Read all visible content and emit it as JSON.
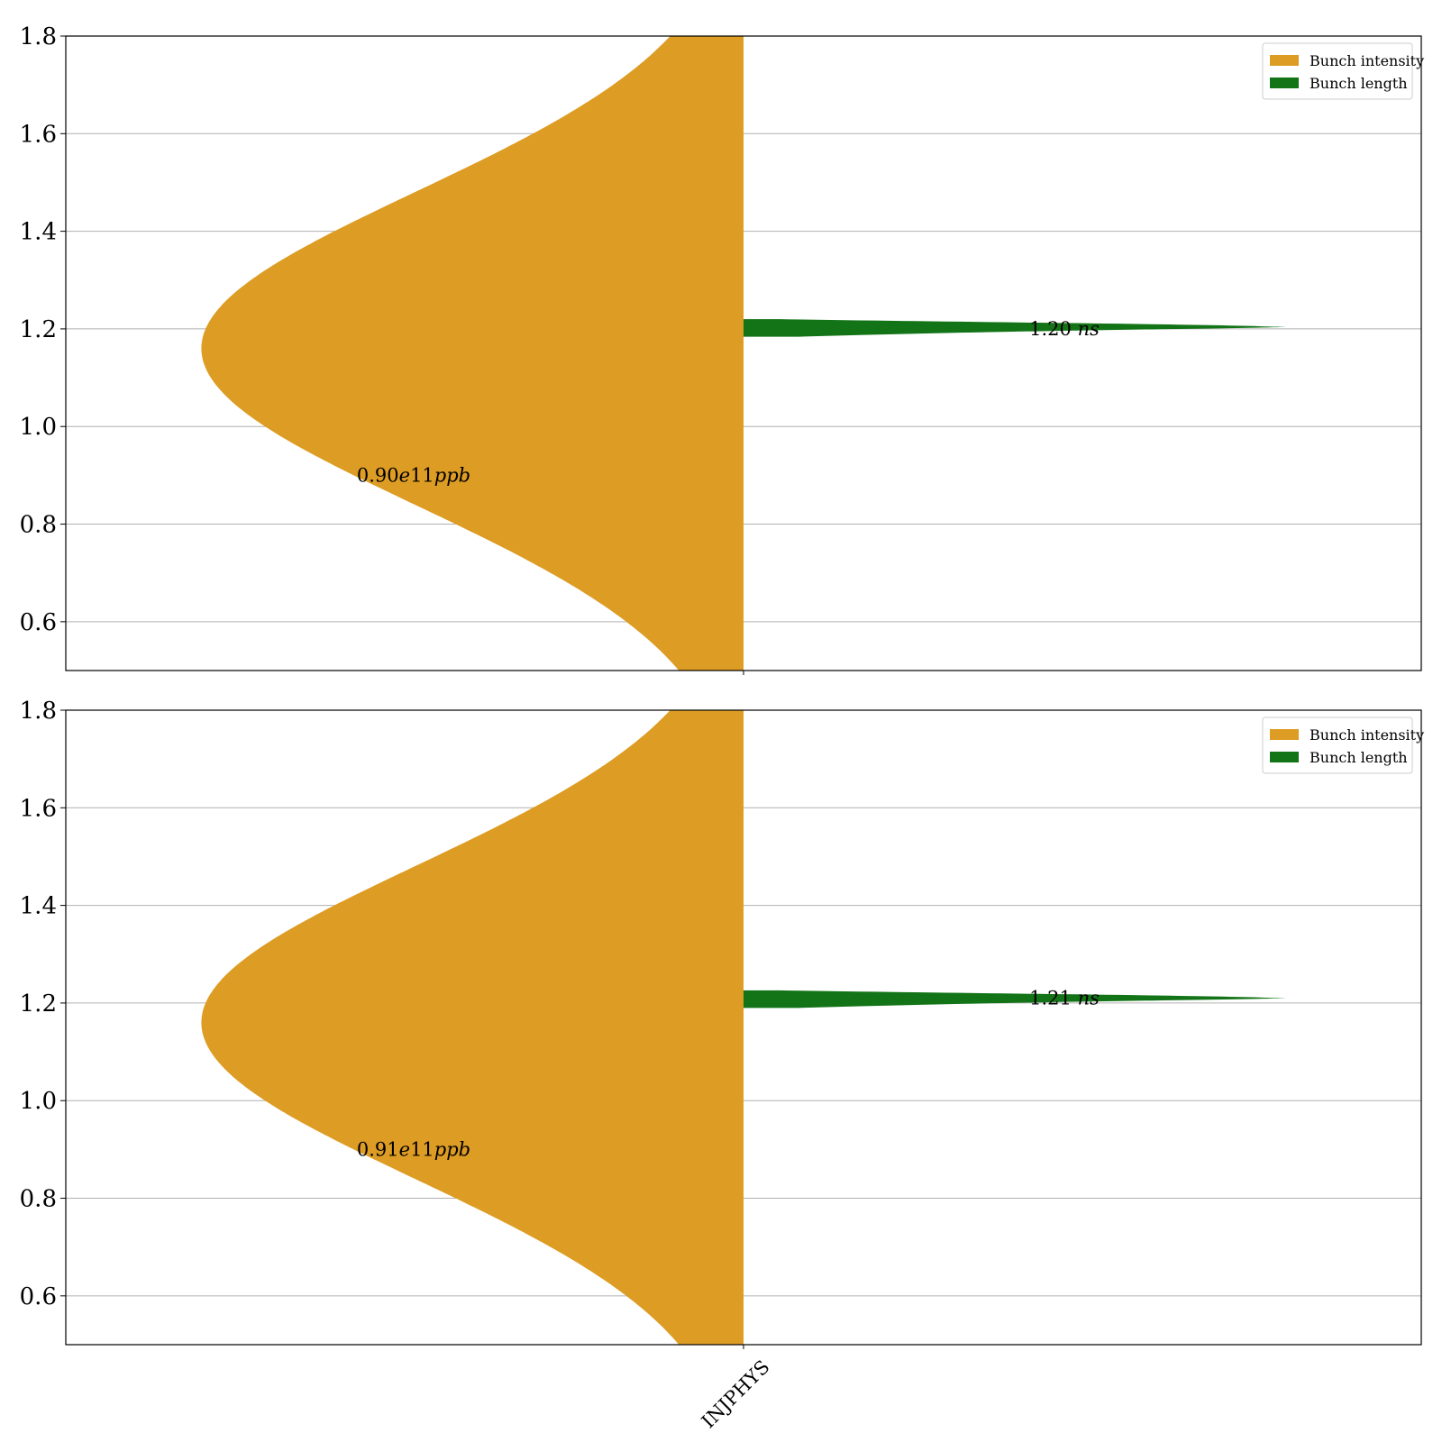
{
  "chart_data": [
    {
      "type": "violin",
      "title": "",
      "xlabel": "",
      "ylabel": "",
      "ylim": [
        0.5,
        1.8
      ],
      "yticks": [
        "0.6",
        "0.8",
        "1.0",
        "1.2",
        "1.4",
        "1.6",
        "1.8"
      ],
      "yticks_values": [
        0.6,
        0.8,
        1.0,
        1.2,
        1.4,
        1.6,
        1.8
      ],
      "categories": [],
      "grid": true,
      "legend": {
        "placement": "top-right",
        "entries": [
          "Bunch intensity",
          "Bunch length"
        ]
      },
      "series": [
        {
          "name": "Bunch intensity",
          "side": "left",
          "color": "#dd9c23",
          "shape": {
            "center": 1.16,
            "sigma": 0.32
          },
          "annotation": {
            "x": -0.5,
            "y": 0.9,
            "value": "0.90",
            "exp": "e11",
            "unit": "ppb"
          }
        },
        {
          "name": "Bunch length",
          "side": "right",
          "color": "#137417",
          "shape": {
            "center": 1.202,
            "spread": 0.018
          },
          "annotation": {
            "x": 0.5,
            "y": 1.2,
            "value": "1.20",
            "unit": "ns"
          }
        }
      ]
    },
    {
      "type": "violin",
      "title": "",
      "xlabel": "",
      "ylabel": "",
      "ylim": [
        0.5,
        1.8
      ],
      "yticks": [
        "0.6",
        "0.8",
        "1.0",
        "1.2",
        "1.4",
        "1.6",
        "1.8"
      ],
      "yticks_values": [
        0.6,
        0.8,
        1.0,
        1.2,
        1.4,
        1.6,
        1.8
      ],
      "categories": [
        "INJPHYS"
      ],
      "grid": true,
      "legend": {
        "placement": "top-right",
        "entries": [
          "Bunch intensity",
          "Bunch length"
        ]
      },
      "series": [
        {
          "name": "Bunch intensity",
          "side": "left",
          "color": "#dd9c23",
          "shape": {
            "center": 1.16,
            "sigma": 0.32
          },
          "annotation": {
            "x": -0.5,
            "y": 0.9,
            "value": "0.91",
            "exp": "e11",
            "unit": "ppb"
          }
        },
        {
          "name": "Bunch length",
          "side": "right",
          "color": "#137417",
          "shape": {
            "center": 1.208,
            "spread": 0.018
          },
          "annotation": {
            "x": 0.5,
            "y": 1.21,
            "value": "1.21",
            "unit": "ns"
          }
        }
      ]
    }
  ]
}
